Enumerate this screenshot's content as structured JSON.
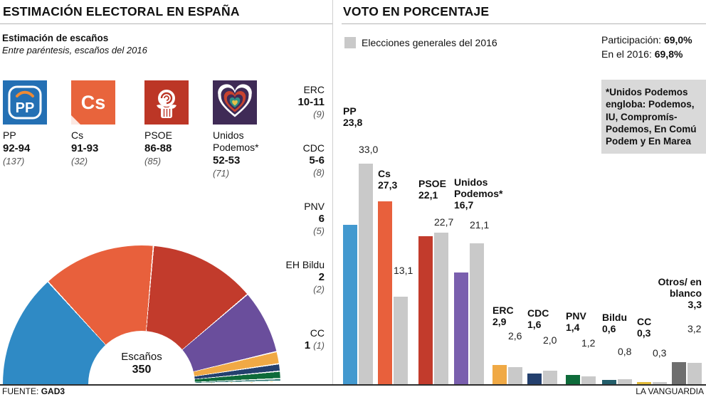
{
  "meta": {
    "source_label": "FUENTE:",
    "source": "GAD3",
    "brand": "LA VANGUARDIA"
  },
  "left": {
    "title": "ESTIMACIÓN ELECTORAL EN ESPAÑA",
    "subtitle_bold": "Estimación de escaños",
    "subtitle_italic": "Entre paréntesis, escaños del 2016",
    "hemicycle_label": "Escaños",
    "hemicycle_total": "350",
    "parties": [
      {
        "name": "PP",
        "range": "92-94",
        "prev": "(137)",
        "logo_text": "PP"
      },
      {
        "name": "Cs",
        "range": "91-93",
        "prev": "(32)",
        "logo_text": "Cs"
      },
      {
        "name": "PSOE",
        "range": "86-88",
        "prev": "(85)"
      },
      {
        "name": "Unidos Podemos*",
        "range": "52-53",
        "prev": "(71)"
      }
    ],
    "minor": [
      {
        "name": "ERC",
        "range": "10-11",
        "prev": "(9)"
      },
      {
        "name": "CDC",
        "range": "5-6",
        "prev": "(8)"
      },
      {
        "name": "PNV",
        "range": "6",
        "prev": "(5)"
      },
      {
        "name": "EH Bildu",
        "range": "2",
        "prev": "(2)"
      },
      {
        "name": "CC",
        "range": "1",
        "prev": "(1)"
      }
    ]
  },
  "right": {
    "title": "VOTO EN PORCENTAJE",
    "legend": "Elecciones generales del 2016",
    "participation_label": "Participación:",
    "participation_value": "69,0%",
    "participation2016_label": "En el 2016:",
    "participation2016_value": "69,8%",
    "note": "*Unidos Podemos engloba: Podemos, IU, Compromís-Podemos, En Comú Podem y En Marea",
    "bars": [
      {
        "name": "PP",
        "est": "23,8",
        "prev": "33,0"
      },
      {
        "name": "Cs",
        "est": "27,3",
        "prev": "13,1"
      },
      {
        "name": "PSOE",
        "est": "22,1",
        "prev": "22,7"
      },
      {
        "name": "Unidos Podemos*",
        "est": "16,7",
        "prev": "21,1"
      },
      {
        "name": "ERC",
        "est": "2,9",
        "prev": "2,6"
      },
      {
        "name": "CDC",
        "est": "1,6",
        "prev": "2,0"
      },
      {
        "name": "PNV",
        "est": "1,4",
        "prev": "1,2"
      },
      {
        "name": "Bildu",
        "est": "0,6",
        "prev": "0,8"
      },
      {
        "name": "CC",
        "est": "0,3",
        "prev": "0,3"
      },
      {
        "name": "Otros/ en blanco",
        "est": "3,3",
        "prev": "3,2"
      }
    ]
  },
  "chart_data": [
    {
      "type": "pie",
      "shape": "hemicycle",
      "title": "Estimación de escaños",
      "total": 350,
      "center_label": "Escaños 350",
      "series": [
        {
          "name": "PP",
          "seats": 93,
          "color": "#2f8ac5"
        },
        {
          "name": "Cs",
          "seats": 92,
          "color": "#e8603c"
        },
        {
          "name": "PSOE",
          "seats": 87,
          "color": "#c23b2c"
        },
        {
          "name": "Unidos Podemos",
          "seats": 52,
          "color": "#6a4e9c"
        },
        {
          "name": "ERC",
          "seats": 10,
          "color": "#f0a945"
        },
        {
          "name": "CDC",
          "seats": 6,
          "color": "#24406e"
        },
        {
          "name": "PNV",
          "seats": 6,
          "color": "#0e6b3a"
        },
        {
          "name": "EH Bildu",
          "seats": 2,
          "color": "#2c7472"
        },
        {
          "name": "CC",
          "seats": 1,
          "color": "#e3bb3a"
        }
      ]
    },
    {
      "type": "bar",
      "title": "Voto en porcentaje",
      "categories": [
        "PP",
        "Cs",
        "PSOE",
        "Unidos Podemos*",
        "ERC",
        "CDC",
        "PNV",
        "Bildu",
        "CC",
        "Otros/en blanco"
      ],
      "series": [
        {
          "name": "Estimación",
          "values": [
            23.8,
            27.3,
            22.1,
            16.7,
            2.9,
            1.6,
            1.4,
            0.6,
            0.3,
            3.3
          ],
          "colors": [
            "#4399cf",
            "#e8603c",
            "#c23b2c",
            "#7a5fae",
            "#f0a945",
            "#24406e",
            "#0e6b3a",
            "#235e6b",
            "#e3bb3a",
            "#6e6e6e"
          ]
        },
        {
          "name": "Elecciones generales del 2016",
          "values": [
            33.0,
            13.1,
            22.7,
            21.1,
            2.6,
            2.0,
            1.2,
            0.8,
            0.3,
            3.2
          ],
          "color": "#c9c9c9"
        }
      ],
      "ylim": [
        0,
        35
      ],
      "unit": "%",
      "grid": false,
      "legend_position": "top-left"
    }
  ]
}
